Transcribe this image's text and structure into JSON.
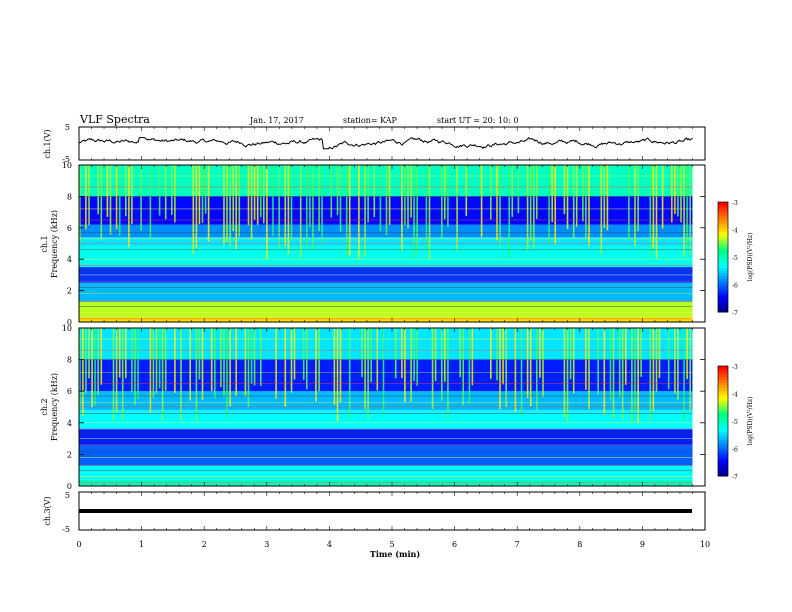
{
  "header": {
    "title": "VLF Spectra",
    "date": "Jan. 17, 2017",
    "station": "station= KAP",
    "start": "start UT =  20: 10: 0"
  },
  "chart_data": [
    {
      "type": "line",
      "panel": "ch1-waveform",
      "ylabel": "ch.1(V)",
      "ylim": [
        -5,
        5
      ],
      "yticks": [
        "5",
        "-5"
      ],
      "xlim": [
        0,
        10
      ],
      "description_values": {
        "mean": 0.3,
        "amplitude": 1.2
      }
    },
    {
      "type": "heatmap",
      "panel": "ch1-spectrogram",
      "ylabel": "ch.1\nFrequency (kHz)",
      "ylim": [
        0,
        10
      ],
      "yticks": [
        "0",
        "2",
        "4",
        "6",
        "8",
        "10"
      ],
      "xlim": [
        0,
        9.8
      ],
      "colorbar": {
        "label": "log(PSD)(V²/Hz)",
        "range": [
          -7,
          -3
        ],
        "ticks": [
          "-3",
          "-4",
          "-5",
          "-6",
          "-7"
        ]
      },
      "bands": [
        {
          "f": [
            0.0,
            0.3
          ],
          "level": -4.0
        },
        {
          "f": [
            0.3,
            1.3
          ],
          "level": -4.3
        },
        {
          "f": [
            1.3,
            2.5
          ],
          "level": -5.6
        },
        {
          "f": [
            2.5,
            3.5
          ],
          "level": -6.2
        },
        {
          "f": [
            3.5,
            4.8
          ],
          "level": -5.2
        },
        {
          "f": [
            4.8,
            5.4
          ],
          "level": -5.4
        },
        {
          "f": [
            5.4,
            6.2
          ],
          "level": -5.8
        },
        {
          "f": [
            6.2,
            8.0
          ],
          "level": -6.4
        },
        {
          "f": [
            8.0,
            10.0
          ],
          "level": -5.0
        }
      ]
    },
    {
      "type": "heatmap",
      "panel": "ch2-spectrogram",
      "ylabel": "ch.2\nFrequency (kHz)",
      "ylim": [
        0,
        10
      ],
      "yticks": [
        "0",
        "2",
        "4",
        "6",
        "8",
        "10"
      ],
      "xlim": [
        0,
        9.8
      ],
      "colorbar": {
        "label": "log(PSD)(V²/Hz)",
        "range": [
          -7,
          -3
        ],
        "ticks": [
          "-3",
          "-4",
          "-5",
          "-6",
          "-7"
        ]
      },
      "bands": [
        {
          "f": [
            0.0,
            0.4
          ],
          "level": -5.0
        },
        {
          "f": [
            0.4,
            1.3
          ],
          "level": -5.3
        },
        {
          "f": [
            1.3,
            2.6
          ],
          "level": -6.0
        },
        {
          "f": [
            2.6,
            3.6
          ],
          "level": -6.3
        },
        {
          "f": [
            3.6,
            4.8
          ],
          "level": -5.3
        },
        {
          "f": [
            4.8,
            6.0
          ],
          "level": -5.6
        },
        {
          "f": [
            6.0,
            8.0
          ],
          "level": -6.3
        },
        {
          "f": [
            8.0,
            10.0
          ],
          "level": -5.4
        }
      ]
    },
    {
      "type": "line",
      "panel": "ch3-waveform",
      "ylabel": "ch.3(V)",
      "ylim": [
        -5,
        5
      ],
      "yticks": [
        "5",
        "-5"
      ],
      "xlim": [
        0,
        10
      ],
      "constant_value": 0
    }
  ],
  "xaxis": {
    "label": "Time (min)",
    "ticks": [
      "0",
      "1",
      "2",
      "3",
      "4",
      "5",
      "6",
      "7",
      "8",
      "9",
      "10"
    ]
  },
  "colors": {
    "colormap": [
      "#000080",
      "#0000ff",
      "#0080ff",
      "#00ffff",
      "#00ff80",
      "#ffff00",
      "#ff8000",
      "#ff0000",
      "#ffffff"
    ],
    "trace": "#000000"
  }
}
